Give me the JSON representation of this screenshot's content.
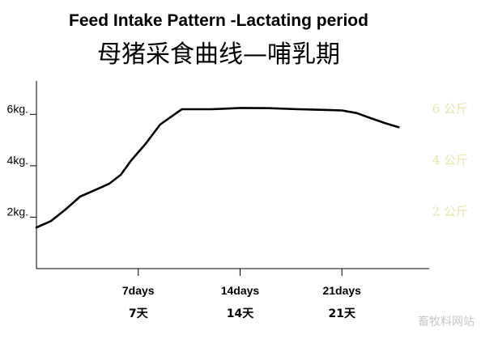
{
  "chart_data": {
    "type": "line",
    "title": "Feed Intake Pattern -Lactating period",
    "subtitle": "母猪采食曲线—哺乳期",
    "x_tick_labels": [
      {
        "x": 7,
        "label": "7days",
        "label_zh": "7天"
      },
      {
        "x": 14,
        "label": "14days",
        "label_zh": "14天"
      },
      {
        "x": 21,
        "label": "21days",
        "label_zh": "21天"
      }
    ],
    "y_tick_labels": [
      {
        "y": 2,
        "label": "2kg."
      },
      {
        "y": 4,
        "label": "4kg."
      },
      {
        "y": 6,
        "label": "6kg."
      }
    ],
    "right_labels": [
      {
        "y": 2,
        "label": "2 公斤"
      },
      {
        "y": 4,
        "label": "4 公斤"
      },
      {
        "y": 6,
        "label": "6 公斤"
      }
    ],
    "xlim": [
      0,
      27
    ],
    "ylim": [
      0,
      7.3
    ],
    "series": [
      {
        "values": [
          [
            0,
            1.6
          ],
          [
            1,
            1.85
          ],
          [
            2,
            2.3
          ],
          [
            3,
            2.8
          ],
          [
            4,
            3.05
          ],
          [
            5,
            3.3
          ],
          [
            5.8,
            3.65
          ],
          [
            6.5,
            4.2
          ],
          [
            7.5,
            4.85
          ],
          [
            8.5,
            5.6
          ],
          [
            9.5,
            6.0
          ],
          [
            10,
            6.2
          ],
          [
            11,
            6.2
          ],
          [
            12,
            6.2
          ],
          [
            13,
            6.22
          ],
          [
            14,
            6.25
          ],
          [
            16,
            6.24
          ],
          [
            18,
            6.2
          ],
          [
            20,
            6.17
          ],
          [
            21,
            6.15
          ],
          [
            22,
            6.05
          ],
          [
            23,
            5.85
          ],
          [
            24,
            5.65
          ],
          [
            24.9,
            5.5
          ]
        ]
      }
    ],
    "line_color": "#000000",
    "label_color_right": "#e8e4a8",
    "grid": false
  },
  "watermark": "畜牧料网站"
}
